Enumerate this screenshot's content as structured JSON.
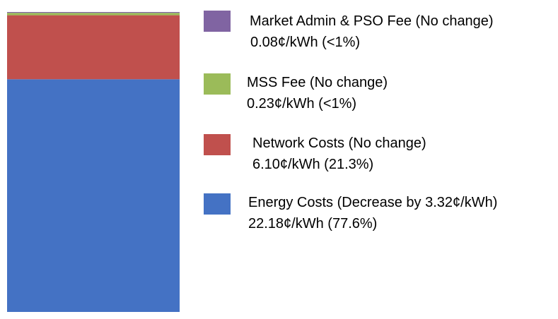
{
  "chart_data": {
    "type": "bar",
    "stacked": true,
    "categories": [
      ""
    ],
    "series": [
      {
        "name": "Energy Costs (Decrease by 3.32¢/kWh)",
        "values": [
          22.18
        ],
        "value_label": "22.18¢/kWh (77.6%)",
        "color": "#4472c4"
      },
      {
        "name": "Network Costs (No change)",
        "values": [
          6.1
        ],
        "value_label": "6.10¢/kWh (21.3%)",
        "color": "#c0504d"
      },
      {
        "name": "MSS Fee (No change)",
        "values": [
          0.23
        ],
        "value_label": "0.23¢/kWh (<1%)",
        "color": "#9bbb59"
      },
      {
        "name": "Market Admin & PSO Fee (No change)",
        "values": [
          0.08
        ],
        "value_label": "0.08¢/kWh (<1%)",
        "color": "#8064a2"
      }
    ],
    "total": 28.59,
    "legend_position": "right",
    "grid": false
  }
}
